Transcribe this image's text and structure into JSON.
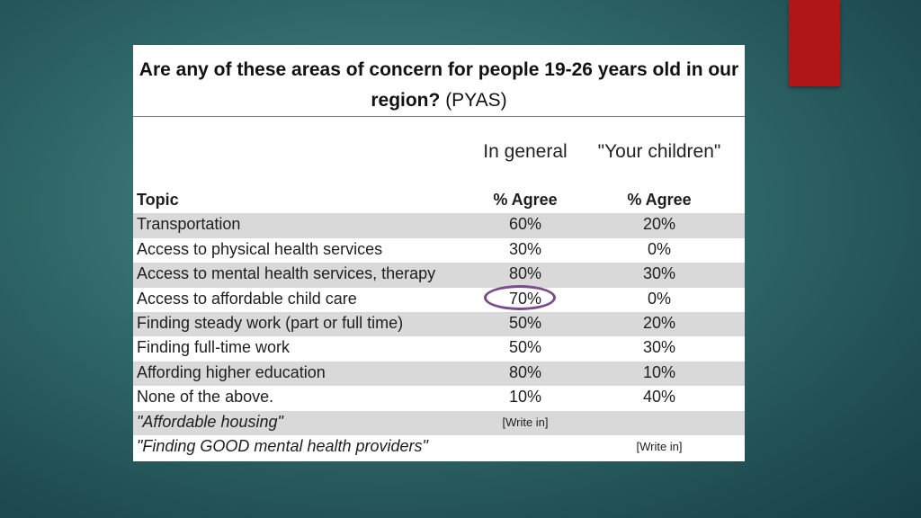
{
  "title": {
    "bold": "Are any of these areas of concern for people 19-26 years old in our region?",
    "normal": "(PYAS)"
  },
  "columns": {
    "general": "In general",
    "children": "\"Your children\""
  },
  "table": {
    "header": {
      "topic": "Topic",
      "general": "% Agree",
      "children": "% Agree"
    },
    "rows": [
      {
        "topic": "Transportation",
        "general": "60%",
        "children": "20%"
      },
      {
        "topic": "Access to physical health services",
        "general": "30%",
        "children": "0%"
      },
      {
        "topic": "Access to mental health services, therapy",
        "general": "80%",
        "children": "30%"
      },
      {
        "topic": "Access to affordable child care",
        "general": "70%",
        "children": "0%"
      },
      {
        "topic": "Finding steady work (part or full time)",
        "general": "50%",
        "children": "20%"
      },
      {
        "topic": "Finding full-time work",
        "general": "50%",
        "children": "30%"
      },
      {
        "topic": "Affording higher education",
        "general": "80%",
        "children": "10%"
      },
      {
        "topic": "None of the above.",
        "general": "10%",
        "children": "40%"
      },
      {
        "topic": "\"Affordable housing\"",
        "general": "[Write in]",
        "children": ""
      },
      {
        "topic": "\"Finding GOOD mental health providers\"",
        "general": "",
        "children": "[Write in]"
      }
    ]
  },
  "colors": {
    "accent": "#b01616",
    "highlight_circle": "#7b4a8a",
    "row_shade": "#d9d9d9"
  }
}
